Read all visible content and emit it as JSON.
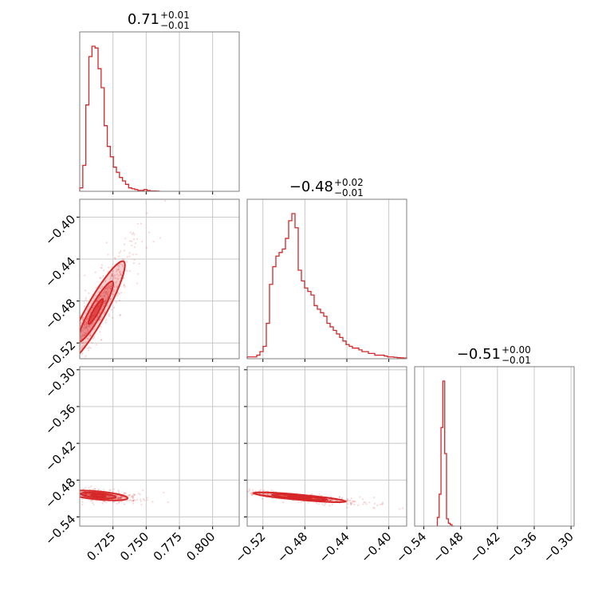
{
  "chart_data": {
    "type": "corner",
    "color": "#d62728",
    "params": [
      {
        "title_value": "0.71",
        "title_plus": "+0.01",
        "title_minus": "−0.01",
        "range": [
          0.7,
          0.82
        ]
      },
      {
        "title_value": "−0.48",
        "title_plus": "+0.02",
        "title_minus": "−0.01",
        "range": [
          -0.535,
          -0.383
        ]
      },
      {
        "title_value": "−0.51",
        "title_plus": "+0.00",
        "title_minus": "−0.01",
        "range": [
          -0.555,
          -0.295
        ]
      }
    ],
    "ticks": {
      "p0": {
        "values": [
          0.725,
          0.75,
          0.775,
          0.8
        ],
        "labels": [
          "0.725",
          "0.750",
          "0.775",
          "0.800"
        ]
      },
      "p1": {
        "values": [
          -0.52,
          -0.48,
          -0.44,
          -0.4
        ],
        "labels": [
          "−0.52",
          "−0.48",
          "−0.44",
          "−0.40"
        ]
      },
      "p2": {
        "values": [
          -0.54,
          -0.48,
          -0.42,
          -0.36,
          -0.3
        ],
        "labels": [
          "−0.54",
          "−0.48",
          "−0.42",
          "−0.36",
          "−0.30"
        ]
      }
    },
    "hist_p0": [
      0.02,
      0.15,
      0.5,
      0.78,
      0.84,
      0.83,
      0.71,
      0.6,
      0.38,
      0.26,
      0.2,
      0.14,
      0.11,
      0.08,
      0.06,
      0.04,
      0.02,
      0.015,
      0.01,
      0.005,
      0.005,
      0.01,
      0.005,
      0.002,
      0.002,
      0.001
    ],
    "hist_p1": [
      0.01,
      0.01,
      0.01,
      0.02,
      0.04,
      0.07,
      0.2,
      0.42,
      0.52,
      0.58,
      0.6,
      0.62,
      0.68,
      0.78,
      0.82,
      0.74,
      0.5,
      0.44,
      0.4,
      0.38,
      0.36,
      0.3,
      0.28,
      0.26,
      0.24,
      0.2,
      0.18,
      0.16,
      0.14,
      0.12,
      0.1,
      0.08,
      0.07,
      0.06,
      0.06,
      0.05,
      0.04,
      0.04,
      0.03,
      0.03,
      0.02,
      0.02,
      0.02,
      0.015,
      0.01,
      0.01,
      0.008,
      0.006,
      0.005,
      0.004
    ],
    "hist_p2": {
      "edges": [
        -0.518,
        -0.515,
        -0.512,
        -0.509,
        -0.506,
        -0.503,
        -0.5,
        -0.497,
        -0.494,
        -0.491
      ],
      "values": [
        0.06,
        0.22,
        0.68,
        1.0,
        0.5,
        0.05,
        0.02,
        0.01,
        0.0
      ]
    },
    "samples_p0_p1": {
      "x_mean": 0.712,
      "y_mean": -0.49,
      "x_sd": 0.011,
      "y_sd": 0.024,
      "corr": 0.92
    },
    "samples_p0_p2": {
      "x_mean": 0.714,
      "y_mean": -0.505,
      "x_sd": 0.011,
      "y_sd": 0.004,
      "corr": -0.55
    },
    "samples_p1_p2": {
      "x_mean": -0.485,
      "y_mean": -0.508,
      "x_sd": 0.022,
      "y_sd": 0.004,
      "corr": -0.85
    }
  }
}
